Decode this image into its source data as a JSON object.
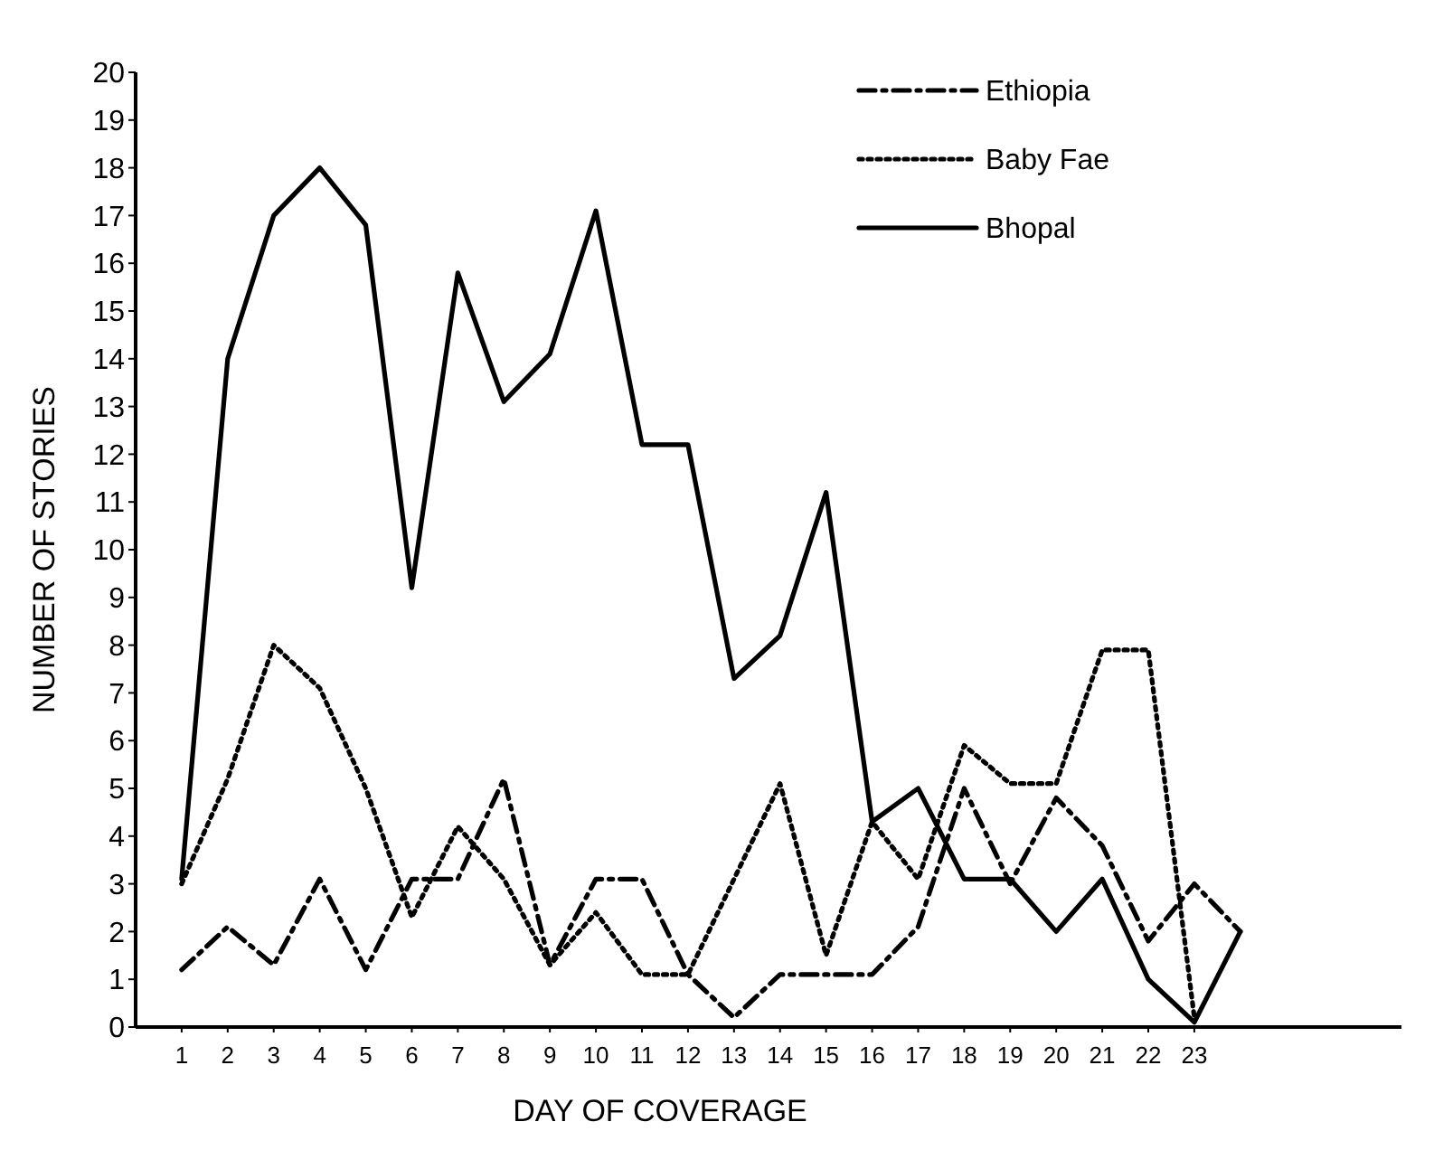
{
  "chart_data": {
    "type": "line",
    "xlabel": "DAY OF COVERAGE",
    "ylabel": "NUMBER OF STORIES",
    "x": [
      1,
      2,
      3,
      4,
      5,
      6,
      7,
      8,
      9,
      10,
      11,
      12,
      13,
      14,
      15,
      16,
      17,
      18,
      19,
      20,
      21,
      22,
      23,
      24
    ],
    "xlim": [
      0,
      27.5
    ],
    "xticks": [
      1,
      2,
      3,
      4,
      5,
      6,
      7,
      8,
      9,
      10,
      11,
      12,
      13,
      14,
      15,
      16,
      17,
      18,
      19,
      20,
      21,
      22,
      23
    ],
    "ylim": [
      0,
      20
    ],
    "yticks": [
      0,
      1,
      2,
      3,
      4,
      5,
      6,
      7,
      8,
      9,
      10,
      11,
      12,
      13,
      14,
      15,
      16,
      17,
      18,
      19,
      20
    ],
    "legend": "top right",
    "grid": false,
    "series": [
      {
        "name": "Ethiopia",
        "color": "#000000",
        "line_style": "dashdot",
        "values": [
          1.2,
          2.1,
          1.3,
          3.1,
          1.2,
          3.1,
          3.1,
          5.2,
          1.3,
          3.1,
          3.1,
          1.1,
          0.2,
          1.1,
          1.1,
          1.1,
          2.1,
          5.0,
          3.0,
          4.8,
          3.8,
          1.8,
          3.0,
          2.0
        ]
      },
      {
        "name": "Baby Fae",
        "color": "#000000",
        "line_style": "dotted",
        "values": [
          3.0,
          5.2,
          8.0,
          7.1,
          5.0,
          2.3,
          4.2,
          3.1,
          1.3,
          2.4,
          1.1,
          1.1,
          3.1,
          5.1,
          1.5,
          4.3,
          3.1,
          5.9,
          5.1,
          5.1,
          7.9,
          7.9,
          0.2,
          null
        ]
      },
      {
        "name": "Bhopal",
        "color": "#000000",
        "line_style": "solid",
        "values": [
          3.1,
          14.0,
          17.0,
          18.0,
          16.8,
          9.2,
          15.8,
          13.1,
          14.1,
          17.1,
          12.2,
          12.2,
          7.3,
          8.2,
          11.2,
          4.3,
          5.0,
          3.1,
          3.1,
          2.0,
          3.1,
          1.0,
          0.1,
          2.0
        ]
      }
    ]
  }
}
